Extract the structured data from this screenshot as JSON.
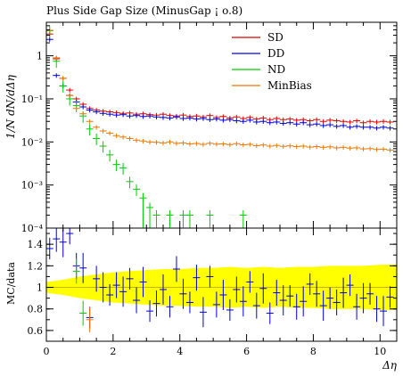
{
  "chart_data": {
    "type": "scatter",
    "title": "Plus Side Gap Size (MinusGap ¡ o.8)",
    "xlabel": "Δη",
    "ylabel": "1/N dN/dΔη",
    "ratio_ylabel": "MC/data",
    "xlim": [
      0,
      10.5
    ],
    "ylim": [
      0.0001,
      6
    ],
    "yscale": "log",
    "ratio_ylim": [
      0.5,
      1.55
    ],
    "x_ticks": [
      0,
      2,
      4,
      6,
      8,
      10
    ],
    "y_ticks": [
      "10⁻⁴",
      "10⁻³",
      "10⁻²",
      "10⁻¹",
      "1"
    ],
    "ratio_ticks": [
      "0.6",
      "0.8",
      "1",
      "1.2",
      "1.4"
    ],
    "legend_position": "top-right",
    "series": [
      {
        "name": "SD",
        "color": "#dd0000",
        "x": [
          0.1,
          0.3,
          0.5,
          0.7,
          0.9,
          1.1,
          1.3,
          1.5,
          1.7,
          1.9,
          2.1,
          2.3,
          2.5,
          2.7,
          2.9,
          3.1,
          3.3,
          3.5,
          3.7,
          3.9,
          4.1,
          4.3,
          4.5,
          4.7,
          4.9,
          5.1,
          5.3,
          5.5,
          5.7,
          5.9,
          6.1,
          6.3,
          6.5,
          6.7,
          6.9,
          7.1,
          7.3,
          7.5,
          7.7,
          7.9,
          8.1,
          8.3,
          8.5,
          8.7,
          8.9,
          9.1,
          9.3,
          9.5,
          9.7,
          9.9,
          10.1,
          10.3
        ],
        "y": [
          3.2,
          0.85,
          0.3,
          0.16,
          0.1,
          0.075,
          0.06,
          0.055,
          0.052,
          0.05,
          0.048,
          0.046,
          0.047,
          0.044,
          0.045,
          0.043,
          0.042,
          0.044,
          0.041,
          0.04,
          0.042,
          0.039,
          0.04,
          0.038,
          0.041,
          0.037,
          0.039,
          0.036,
          0.038,
          0.035,
          0.037,
          0.034,
          0.036,
          0.033,
          0.035,
          0.033,
          0.034,
          0.032,
          0.033,
          0.031,
          0.033,
          0.03,
          0.032,
          0.031,
          0.03,
          0.029,
          0.031,
          0.028,
          0.03,
          0.029,
          0.03,
          0.029
        ]
      },
      {
        "name": "DD",
        "color": "#0000dd",
        "x": [
          0.1,
          0.3,
          0.5,
          0.7,
          0.9,
          1.1,
          1.3,
          1.5,
          1.7,
          1.9,
          2.1,
          2.3,
          2.5,
          2.7,
          2.9,
          3.1,
          3.3,
          3.5,
          3.7,
          3.9,
          4.1,
          4.3,
          4.5,
          4.7,
          4.9,
          5.1,
          5.3,
          5.5,
          5.7,
          5.9,
          6.1,
          6.3,
          6.5,
          6.7,
          6.9,
          7.1,
          7.3,
          7.5,
          7.7,
          7.9,
          8.1,
          8.3,
          8.5,
          8.7,
          8.9,
          9.1,
          9.3,
          9.5,
          9.7,
          9.9,
          10.1,
          10.3
        ],
        "y": [
          2.4,
          0.35,
          0.2,
          0.12,
          0.085,
          0.065,
          0.055,
          0.05,
          0.046,
          0.044,
          0.042,
          0.043,
          0.04,
          0.041,
          0.039,
          0.04,
          0.038,
          0.037,
          0.036,
          0.038,
          0.035,
          0.036,
          0.034,
          0.035,
          0.033,
          0.034,
          0.032,
          0.033,
          0.031,
          0.03,
          0.032,
          0.029,
          0.03,
          0.028,
          0.029,
          0.027,
          0.028,
          0.026,
          0.028,
          0.025,
          0.026,
          0.024,
          0.025,
          0.023,
          0.024,
          0.022,
          0.023,
          0.022,
          0.022,
          0.021,
          0.022,
          0.021
        ]
      },
      {
        "name": "ND",
        "color": "#00cc00",
        "x": [
          0.1,
          0.3,
          0.5,
          0.7,
          0.9,
          1.1,
          1.3,
          1.5,
          1.7,
          1.9,
          2.1,
          2.3,
          2.5,
          2.7,
          2.9,
          3.1,
          3.3,
          3.7,
          4.1,
          4.3,
          4.9,
          5.9
        ],
        "y": [
          3.8,
          0.75,
          0.2,
          0.1,
          0.07,
          0.04,
          0.02,
          0.012,
          0.008,
          0.005,
          0.003,
          0.0025,
          0.0012,
          0.0008,
          0.0005,
          0.0003,
          0.0002,
          0.0002,
          0.0002,
          0.0002,
          0.0002,
          0.0002
        ]
      },
      {
        "name": "MinBias",
        "color": "#ee7700",
        "x": [
          0.1,
          0.3,
          0.5,
          0.7,
          0.9,
          1.1,
          1.3,
          1.5,
          1.7,
          1.9,
          2.1,
          2.3,
          2.5,
          2.7,
          2.9,
          3.1,
          3.3,
          3.5,
          3.7,
          3.9,
          4.1,
          4.3,
          4.5,
          4.7,
          4.9,
          5.1,
          5.3,
          5.5,
          5.7,
          5.9,
          6.1,
          6.3,
          6.5,
          6.7,
          6.9,
          7.1,
          7.3,
          7.5,
          7.7,
          7.9,
          8.1,
          8.3,
          8.5,
          8.7,
          8.9,
          9.1,
          9.3,
          9.5,
          9.7,
          9.9,
          10.1,
          10.3
        ],
        "y": [
          3.9,
          0.9,
          0.3,
          0.12,
          0.06,
          0.045,
          0.03,
          0.022,
          0.018,
          0.016,
          0.014,
          0.013,
          0.012,
          0.011,
          0.0105,
          0.01,
          0.0098,
          0.0095,
          0.01,
          0.0093,
          0.0095,
          0.009,
          0.0092,
          0.0088,
          0.0093,
          0.0089,
          0.009,
          0.0087,
          0.0091,
          0.0086,
          0.0088,
          0.0082,
          0.0085,
          0.008,
          0.0083,
          0.0079,
          0.0081,
          0.0078,
          0.008,
          0.0076,
          0.0078,
          0.0075,
          0.0077,
          0.0073,
          0.0075,
          0.0072,
          0.0073,
          0.0069,
          0.007,
          0.0067,
          0.0068,
          0.0065
        ]
      }
    ],
    "ratio_series": {
      "name": "DD",
      "color": "#0000dd",
      "x": [
        0.1,
        0.3,
        0.5,
        0.7,
        0.9,
        1.1,
        1.3,
        1.5,
        1.7,
        1.9,
        2.1,
        2.3,
        2.5,
        2.7,
        2.9,
        3.1,
        3.3,
        3.5,
        3.7,
        3.9,
        4.1,
        4.3,
        4.5,
        4.7,
        4.9,
        5.1,
        5.3,
        5.5,
        5.7,
        5.9,
        6.1,
        6.3,
        6.5,
        6.7,
        6.9,
        7.1,
        7.3,
        7.5,
        7.7,
        7.9,
        8.1,
        8.3,
        8.5,
        8.7,
        8.9,
        9.1,
        9.3,
        9.5,
        9.7,
        9.9,
        10.1,
        10.3
      ],
      "y": [
        1.36,
        1.45,
        1.42,
        1.5,
        1.2,
        1.18,
        0.72,
        1.08,
        1.0,
        0.93,
        1.02,
        0.96,
        1.08,
        0.88,
        1.05,
        0.78,
        0.85,
        0.98,
        0.82,
        1.17,
        0.94,
        0.86,
        1.09,
        0.77,
        1.1,
        0.84,
        0.93,
        0.79,
        0.98,
        0.87,
        1.05,
        0.83,
        0.99,
        0.76,
        0.95,
        0.88,
        0.92,
        0.82,
        0.87,
        1.03,
        0.94,
        0.83,
        0.9,
        0.86,
        0.95,
        1.02,
        0.82,
        0.9,
        0.94,
        0.8,
        0.78,
        0.91
      ]
    },
    "ratio_band": {
      "color": "#ffff00",
      "center": 1.0,
      "x": [
        0,
        0.5,
        1.0,
        1.5,
        2.0,
        2.5,
        3.0,
        3.5,
        4.0,
        4.5,
        5.0,
        5.5,
        6.0,
        6.5,
        7.0,
        7.5,
        8.0,
        8.5,
        9.0,
        9.5,
        10.0,
        10.5
      ],
      "lo": [
        0.95,
        0.93,
        0.9,
        0.88,
        0.86,
        0.85,
        0.84,
        0.83,
        0.83,
        0.82,
        0.82,
        0.81,
        0.82,
        0.81,
        0.82,
        0.81,
        0.81,
        0.8,
        0.8,
        0.8,
        0.79,
        0.79
      ],
      "hi": [
        1.05,
        1.07,
        1.1,
        1.12,
        1.14,
        1.15,
        1.16,
        1.17,
        1.17,
        1.18,
        1.18,
        1.19,
        1.18,
        1.19,
        1.18,
        1.19,
        1.19,
        1.2,
        1.2,
        1.2,
        1.21,
        1.21
      ]
    }
  }
}
